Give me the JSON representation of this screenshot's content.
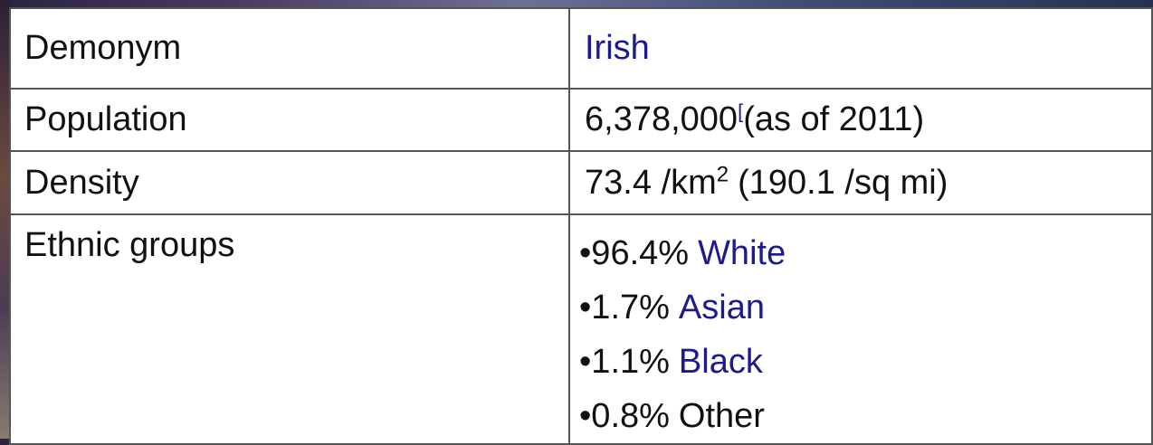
{
  "table": {
    "rows": [
      {
        "label": "Demonym",
        "value": {
          "link": "Irish"
        }
      },
      {
        "label": "Population",
        "value": {
          "number": "6,378,000",
          "ref": "[",
          "note": "(as of 2011)"
        }
      },
      {
        "label": "Density",
        "value": {
          "main": "73.4 /km",
          "sup": "2",
          "rest": "(190.1 /sq mi)"
        }
      },
      {
        "label": "Ethnic groups",
        "value": {
          "items": [
            {
              "share": "•96.4%",
              "group": "White",
              "link": true
            },
            {
              "share": "•1.7%",
              "group": "Asian",
              "link": true
            },
            {
              "share": "•1.1%",
              "group": "Black",
              "link": true
            },
            {
              "share": "•0.8%",
              "group": "Other",
              "link": false
            }
          ]
        }
      }
    ]
  }
}
